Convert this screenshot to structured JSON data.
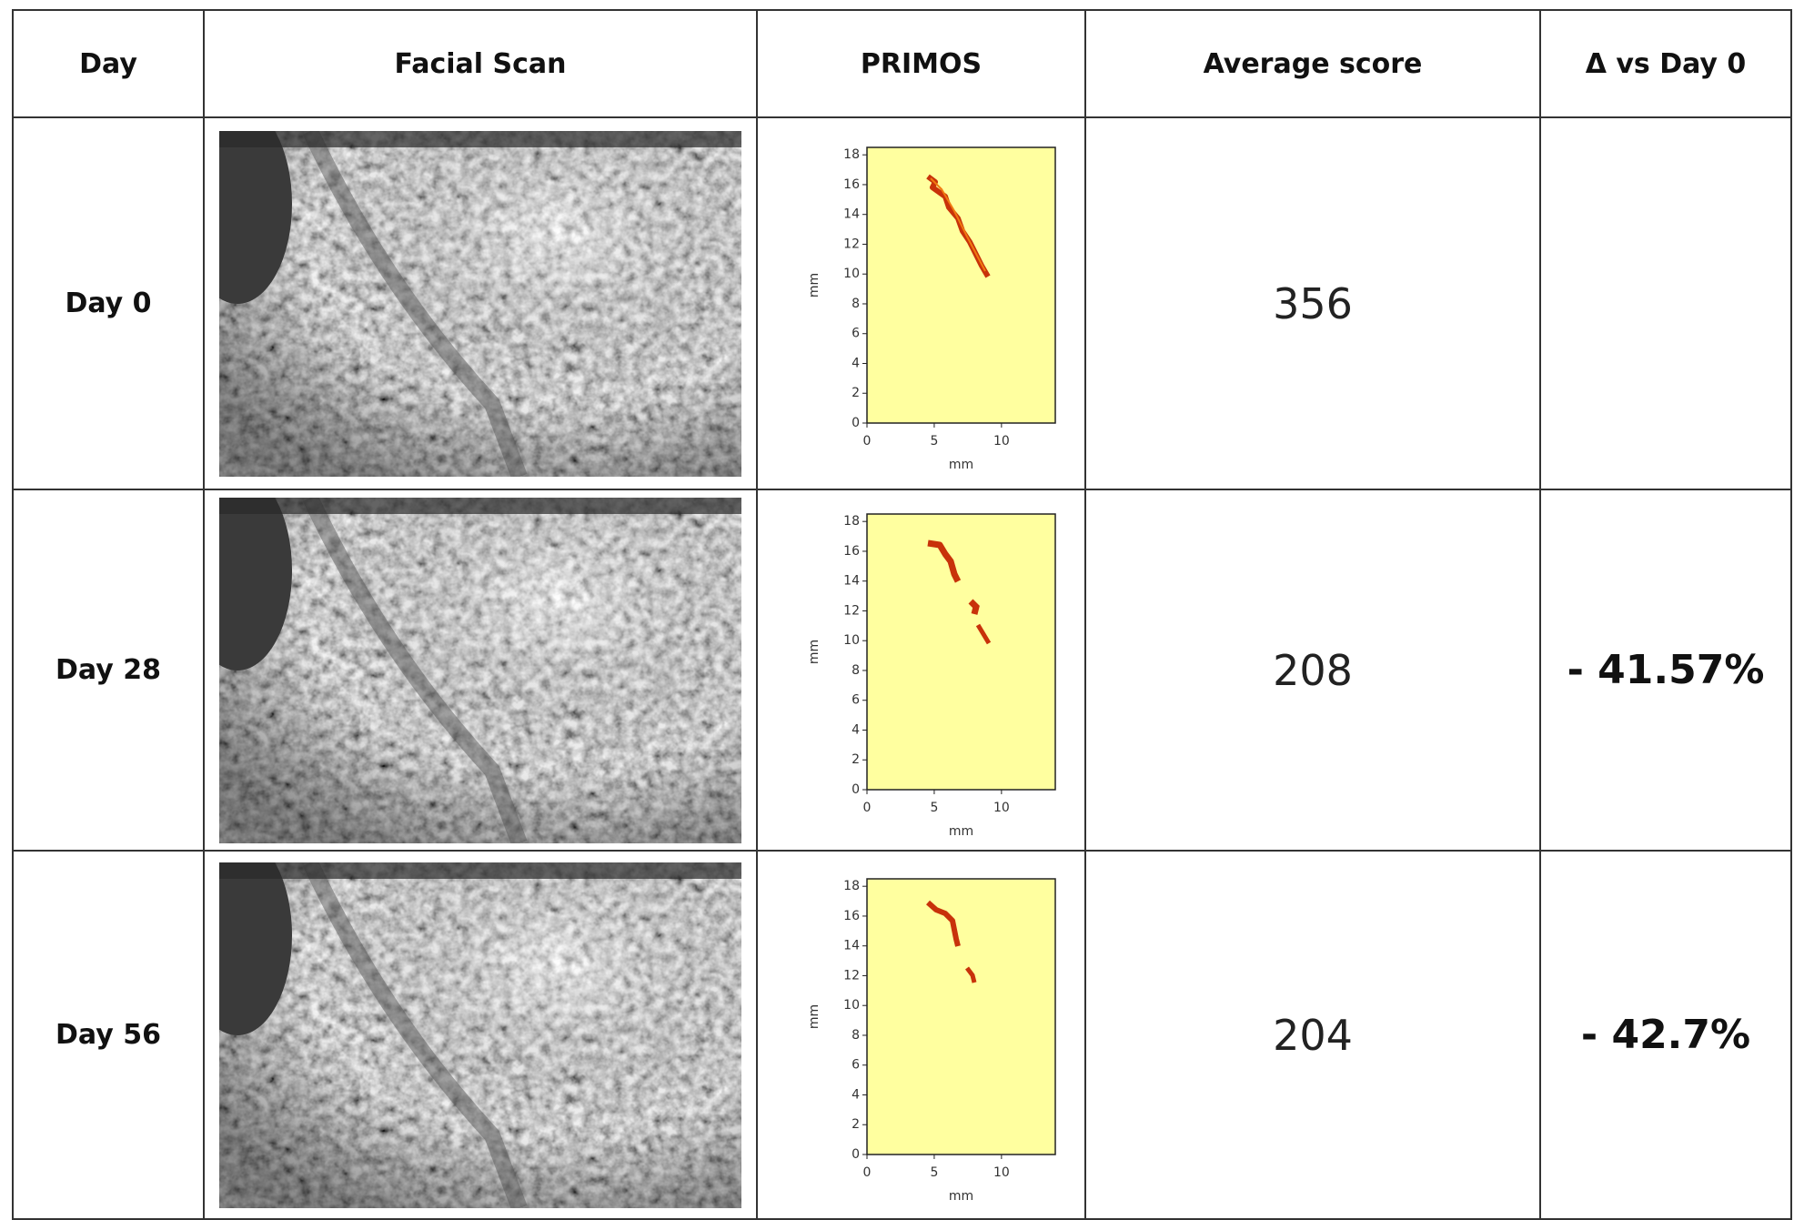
{
  "table": {
    "header": [
      "Day",
      "Facial Scan",
      "PRIMOS",
      "Average score",
      "Δ vs Day 0"
    ],
    "rows": [
      {
        "day": "Day 0",
        "score": 356
      },
      {
        "day": "Day 28",
        "score": 208,
        "delta": "- 41.57%"
      },
      {
        "day": "Day 56",
        "score": 204,
        "delta": "- 42.7%"
      }
    ]
  },
  "primos": {
    "xlabel": "mm",
    "ylabel": "mm",
    "xlim": [
      0,
      14
    ],
    "ylim": [
      0,
      18.5
    ],
    "xticks": [
      0,
      5,
      10
    ],
    "yticks": [
      0,
      2,
      4,
      6,
      8,
      10,
      12,
      14,
      16,
      18
    ],
    "plot_color": "#ffff9f"
  }
}
